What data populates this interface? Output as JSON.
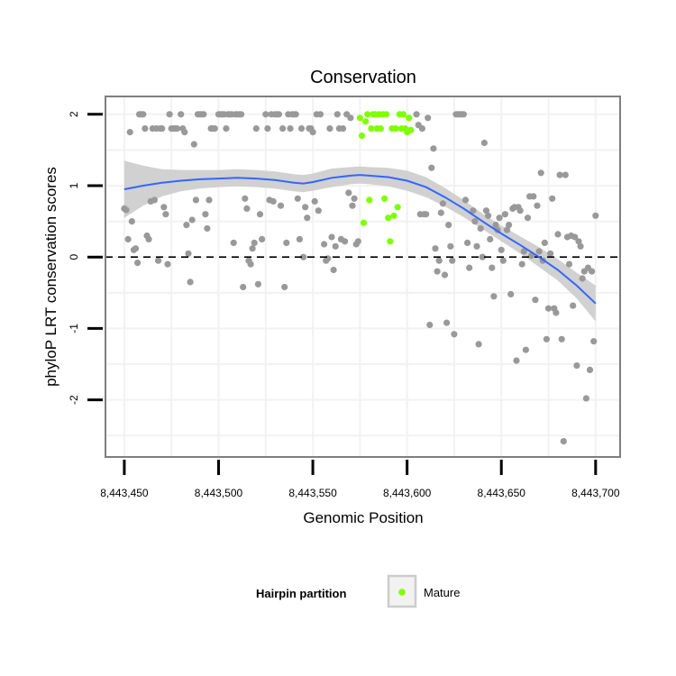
{
  "chart_data": {
    "type": "scatter",
    "title": "Conservation",
    "xlabel": "Genomic Position",
    "ylabel": "phyloP LRT conservation scores",
    "xlim": [
      8443440,
      8443713
    ],
    "ylim": [
      -2.8,
      2.25
    ],
    "x_ticks": [
      8443450,
      8443500,
      8443550,
      8443600,
      8443650,
      8443700
    ],
    "x_tick_labels": [
      "8,443,450",
      "8,443,500",
      "8,443,550",
      "8,443,600",
      "8,443,650",
      "8,443,700"
    ],
    "y_ticks": [
      -2,
      -1,
      0,
      1,
      2
    ],
    "y_tick_labels": [
      "-2",
      "-1",
      "0",
      "1",
      "2"
    ],
    "grid": true,
    "reference_line": {
      "y": 0,
      "style": "dashed"
    },
    "colors": {
      "other": "#999999",
      "mature": "#7fff00",
      "smooth_line": "#3366ff",
      "ribbon": "#cccccc",
      "panel_border": "#7f7f7f",
      "grid": "#f2f2f2"
    },
    "series": [
      {
        "name": "",
        "color": "#999999",
        "points": [
          [
            8443450,
            0.68
          ],
          [
            8443451,
            0.66
          ],
          [
            8443452,
            0.25
          ],
          [
            8443453,
            1.75
          ],
          [
            8443454,
            0.5
          ],
          [
            8443455,
            0.1
          ],
          [
            8443456,
            0.12
          ],
          [
            8443457,
            -0.08
          ],
          [
            8443458,
            2
          ],
          [
            8443459,
            2
          ],
          [
            8443460,
            2
          ],
          [
            8443461,
            1.8
          ],
          [
            8443462,
            0.3
          ],
          [
            8443463,
            0.25
          ],
          [
            8443464,
            0.78
          ],
          [
            8443465,
            1.8
          ],
          [
            8443466,
            0.8
          ],
          [
            8443467,
            1.8
          ],
          [
            8443468,
            -0.05
          ],
          [
            8443469,
            1.8
          ],
          [
            8443470,
            1.8
          ],
          [
            8443471,
            0.7
          ],
          [
            8443472,
            0.6
          ],
          [
            8443473,
            -0.1
          ],
          [
            8443474,
            2
          ],
          [
            8443475,
            1.8
          ],
          [
            8443476,
            1.8
          ],
          [
            8443477,
            1.8
          ],
          [
            8443478,
            1.8
          ],
          [
            8443480,
            2
          ],
          [
            8443481,
            1.8
          ],
          [
            8443482,
            1.75
          ],
          [
            8443483,
            0.45
          ],
          [
            8443484,
            0.05
          ],
          [
            8443485,
            -0.35
          ],
          [
            8443486,
            0.52
          ],
          [
            8443487,
            1.58
          ],
          [
            8443488,
            0.8
          ],
          [
            8443489,
            2
          ],
          [
            8443490,
            2
          ],
          [
            8443491,
            2
          ],
          [
            8443492,
            2
          ],
          [
            8443493,
            0.6
          ],
          [
            8443494,
            0.4
          ],
          [
            8443495,
            0.8
          ],
          [
            8443496,
            1.8
          ],
          [
            8443497,
            1.8
          ],
          [
            8443498,
            1.8
          ],
          [
            8443500,
            2
          ],
          [
            8443501,
            2
          ],
          [
            8443502,
            2
          ],
          [
            8443503,
            2
          ],
          [
            8443504,
            1.8
          ],
          [
            8443505,
            2
          ],
          [
            8443506,
            2
          ],
          [
            8443507,
            2
          ],
          [
            8443508,
            0.2
          ],
          [
            8443509,
            2
          ],
          [
            8443510,
            2
          ],
          [
            8443511,
            2
          ],
          [
            8443512,
            2
          ],
          [
            8443513,
            -0.42
          ],
          [
            8443514,
            0.82
          ],
          [
            8443515,
            0.68
          ],
          [
            8443516,
            -0.05
          ],
          [
            8443517,
            -0.1
          ],
          [
            8443518,
            0.12
          ],
          [
            8443519,
            0.2
          ],
          [
            8443520,
            1.8
          ],
          [
            8443521,
            -0.38
          ],
          [
            8443522,
            0.6
          ],
          [
            8443523,
            0.25
          ],
          [
            8443525,
            2
          ],
          [
            8443526,
            1.8
          ],
          [
            8443527,
            0.8
          ],
          [
            8443528,
            2
          ],
          [
            8443529,
            0.78
          ],
          [
            8443530,
            2
          ],
          [
            8443531,
            2
          ],
          [
            8443532,
            2
          ],
          [
            8443533,
            0.72
          ],
          [
            8443534,
            1.8
          ],
          [
            8443535,
            -0.42
          ],
          [
            8443536,
            0.2
          ],
          [
            8443537,
            2
          ],
          [
            8443538,
            1.8
          ],
          [
            8443539,
            2
          ],
          [
            8443540,
            2
          ],
          [
            8443541,
            2
          ],
          [
            8443542,
            0.82
          ],
          [
            8443543,
            0.25
          ],
          [
            8443544,
            1.8
          ],
          [
            8443545,
            0
          ],
          [
            8443546,
            0.7
          ],
          [
            8443547,
            0.55
          ],
          [
            8443548,
            1.8
          ],
          [
            8443549,
            1.8
          ],
          [
            8443550,
            1.75
          ],
          [
            8443551,
            0.78
          ],
          [
            8443552,
            2
          ],
          [
            8443553,
            0.65
          ],
          [
            8443554,
            2
          ],
          [
            8443556,
            0.18
          ],
          [
            8443557,
            -0.05
          ],
          [
            8443558,
            -0.02
          ],
          [
            8443559,
            1.8
          ],
          [
            8443560,
            0.28
          ],
          [
            8443561,
            -0.18
          ],
          [
            8443562,
            0.15
          ],
          [
            8443563,
            2
          ],
          [
            8443564,
            1.8
          ],
          [
            8443565,
            0.25
          ],
          [
            8443566,
            1.8
          ],
          [
            8443567,
            0.22
          ],
          [
            8443568,
            2
          ],
          [
            8443569,
            0.9
          ],
          [
            8443570,
            1.95
          ],
          [
            8443571,
            0.72
          ],
          [
            8443572,
            0.82
          ],
          [
            8443573,
            0.18
          ],
          [
            8443574,
            0.22
          ],
          [
            8443605,
            2
          ],
          [
            8443606,
            1.85
          ],
          [
            8443607,
            0.6
          ],
          [
            8443608,
            1.8
          ],
          [
            8443609,
            0.6
          ],
          [
            8443610,
            0.6
          ],
          [
            8443611,
            1.95
          ],
          [
            8443612,
            -0.95
          ],
          [
            8443613,
            1.25
          ],
          [
            8443614,
            1.52
          ],
          [
            8443615,
            0.12
          ],
          [
            8443616,
            -0.2
          ],
          [
            8443617,
            -0.05
          ],
          [
            8443618,
            0.62
          ],
          [
            8443619,
            0.75
          ],
          [
            8443620,
            -0.25
          ],
          [
            8443621,
            -0.92
          ],
          [
            8443622,
            0.45
          ],
          [
            8443623,
            0.15
          ],
          [
            8443624,
            -0.05
          ],
          [
            8443625,
            -1.08
          ],
          [
            8443626,
            2
          ],
          [
            8443627,
            2
          ],
          [
            8443628,
            2
          ],
          [
            8443629,
            2
          ],
          [
            8443630,
            2
          ],
          [
            8443631,
            0.8
          ],
          [
            8443632,
            0.2
          ],
          [
            8443633,
            -0.15
          ],
          [
            8443635,
            0.65
          ],
          [
            8443636,
            0.5
          ],
          [
            8443637,
            0.15
          ],
          [
            8443638,
            -1.22
          ],
          [
            8443639,
            0.4
          ],
          [
            8443640,
            0
          ],
          [
            8443641,
            1.6
          ],
          [
            8443642,
            0.65
          ],
          [
            8443643,
            0.58
          ],
          [
            8443644,
            0.25
          ],
          [
            8443645,
            -0.15
          ],
          [
            8443646,
            -0.55
          ],
          [
            8443647,
            0.45
          ],
          [
            8443648,
            0.38
          ],
          [
            8443649,
            0.55
          ],
          [
            8443650,
            0.1
          ],
          [
            8443651,
            -0.05
          ],
          [
            8443652,
            0.6
          ],
          [
            8443653,
            0.38
          ],
          [
            8443654,
            0.45
          ],
          [
            8443655,
            -0.52
          ],
          [
            8443656,
            0.68
          ],
          [
            8443657,
            0.7
          ],
          [
            8443658,
            -1.45
          ],
          [
            8443659,
            0.7
          ],
          [
            8443660,
            0.65
          ],
          [
            8443661,
            -0.1
          ],
          [
            8443662,
            0.08
          ],
          [
            8443663,
            -1.3
          ],
          [
            8443664,
            0.55
          ],
          [
            8443665,
            0.85
          ],
          [
            8443666,
            0.02
          ],
          [
            8443667,
            0.85
          ],
          [
            8443668,
            -0.6
          ],
          [
            8443669,
            0.72
          ],
          [
            8443670,
            0.08
          ],
          [
            8443671,
            1.18
          ],
          [
            8443672,
            -0.05
          ],
          [
            8443673,
            0.2
          ],
          [
            8443674,
            -1.15
          ],
          [
            8443675,
            -0.72
          ],
          [
            8443676,
            0.05
          ],
          [
            8443677,
            0.82
          ],
          [
            8443678,
            -0.72
          ],
          [
            8443679,
            -0.78
          ],
          [
            8443680,
            0.32
          ],
          [
            8443681,
            1.15
          ],
          [
            8443682,
            -1.15
          ],
          [
            8443683,
            -2.58
          ],
          [
            8443684,
            1.15
          ],
          [
            8443685,
            0.28
          ],
          [
            8443686,
            -0.1
          ],
          [
            8443687,
            0.3
          ],
          [
            8443688,
            -0.68
          ],
          [
            8443689,
            0.28
          ],
          [
            8443690,
            -1.52
          ],
          [
            8443691,
            0.22
          ],
          [
            8443692,
            0.15
          ],
          [
            8443693,
            -0.3
          ],
          [
            8443694,
            -0.2
          ],
          [
            8443695,
            -1.98
          ],
          [
            8443696,
            -0.15
          ],
          [
            8443697,
            -1.58
          ],
          [
            8443698,
            -0.2
          ],
          [
            8443699,
            -1.18
          ],
          [
            8443700,
            0.58
          ]
        ]
      },
      {
        "name": "Mature",
        "color": "#7fff00",
        "points": [
          [
            8443575,
            1.95
          ],
          [
            8443576,
            1.7
          ],
          [
            8443577,
            0.48
          ],
          [
            8443578,
            1.9
          ],
          [
            8443579,
            2
          ],
          [
            8443580,
            0.8
          ],
          [
            8443581,
            1.8
          ],
          [
            8443582,
            2
          ],
          [
            8443583,
            2
          ],
          [
            8443584,
            1.8
          ],
          [
            8443585,
            2
          ],
          [
            8443586,
            1.8
          ],
          [
            8443587,
            2
          ],
          [
            8443588,
            0.82
          ],
          [
            8443589,
            2
          ],
          [
            8443590,
            0.55
          ],
          [
            8443591,
            0.22
          ],
          [
            8443592,
            1.8
          ],
          [
            8443593,
            0.58
          ],
          [
            8443594,
            1.8
          ],
          [
            8443595,
            0.7
          ],
          [
            8443596,
            2
          ],
          [
            8443597,
            1.8
          ],
          [
            8443598,
            2
          ],
          [
            8443599,
            1.8
          ],
          [
            8443600,
            1.75
          ],
          [
            8443601,
            1.95
          ],
          [
            8443602,
            1.78
          ]
        ]
      }
    ],
    "smooth": {
      "x": [
        8443450,
        8443460,
        8443470,
        8443480,
        8443490,
        8443500,
        8443510,
        8443520,
        8443530,
        8443540,
        8443545,
        8443550,
        8443560,
        8443570,
        8443575,
        8443580,
        8443590,
        8443600,
        8443610,
        8443620,
        8443630,
        8443640,
        8443650,
        8443660,
        8443670,
        8443680,
        8443690,
        8443700
      ],
      "y": [
        0.95,
        1.0,
        1.04,
        1.07,
        1.09,
        1.1,
        1.11,
        1.1,
        1.08,
        1.04,
        1.03,
        1.05,
        1.11,
        1.14,
        1.15,
        1.14,
        1.12,
        1.07,
        0.98,
        0.84,
        0.68,
        0.5,
        0.33,
        0.17,
        0.0,
        -0.18,
        -0.4,
        -0.65
      ],
      "lo": [
        0.55,
        0.72,
        0.85,
        0.92,
        0.96,
        0.98,
        0.99,
        0.98,
        0.96,
        0.92,
        0.91,
        0.93,
        0.98,
        1.02,
        1.03,
        1.02,
        0.99,
        0.93,
        0.84,
        0.71,
        0.56,
        0.39,
        0.22,
        0.05,
        -0.14,
        -0.33,
        -0.58,
        -0.9
      ],
      "hi": [
        1.35,
        1.28,
        1.23,
        1.22,
        1.22,
        1.22,
        1.23,
        1.22,
        1.2,
        1.16,
        1.15,
        1.17,
        1.24,
        1.26,
        1.27,
        1.26,
        1.25,
        1.21,
        1.12,
        0.97,
        0.8,
        0.61,
        0.44,
        0.29,
        0.14,
        -0.03,
        -0.22,
        -0.4
      ]
    },
    "legend": {
      "title": "Hairpin partition",
      "entries": [
        {
          "label": "Mature",
          "color": "#7fff00"
        }
      ],
      "placement": "bottom"
    }
  }
}
